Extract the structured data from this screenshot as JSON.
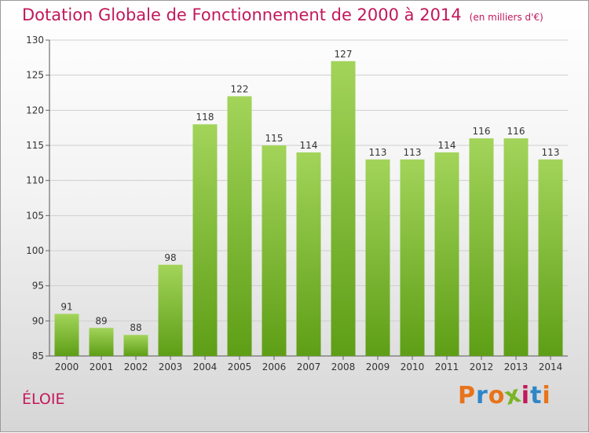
{
  "chart_data": {
    "type": "bar",
    "title": "Dotation Globale de Fonctionnement de 2000 à 2014",
    "subtitle": "(en milliers d'€)",
    "categories": [
      "2000",
      "2001",
      "2002",
      "2003",
      "2004",
      "2005",
      "2006",
      "2007",
      "2008",
      "2009",
      "2010",
      "2011",
      "2012",
      "2013",
      "2014"
    ],
    "values": [
      91,
      89,
      88,
      98,
      118,
      122,
      115,
      114,
      127,
      113,
      113,
      114,
      116,
      116,
      113
    ],
    "ylim": [
      85,
      130
    ],
    "yticks": [
      85,
      90,
      95,
      100,
      105,
      110,
      115,
      120,
      125,
      130
    ],
    "grid": true,
    "bar_color": "#7cbf2e"
  },
  "footer": {
    "commune": "ÉLOIE",
    "logo_text": "Proxiti"
  },
  "colors": {
    "title": "#c2185b",
    "logo_letters": [
      "#e8731a",
      "#2e86c8",
      "#e8731a",
      "#7ab527",
      "#c2185b",
      "#2e86c8",
      "#e8731a"
    ]
  }
}
